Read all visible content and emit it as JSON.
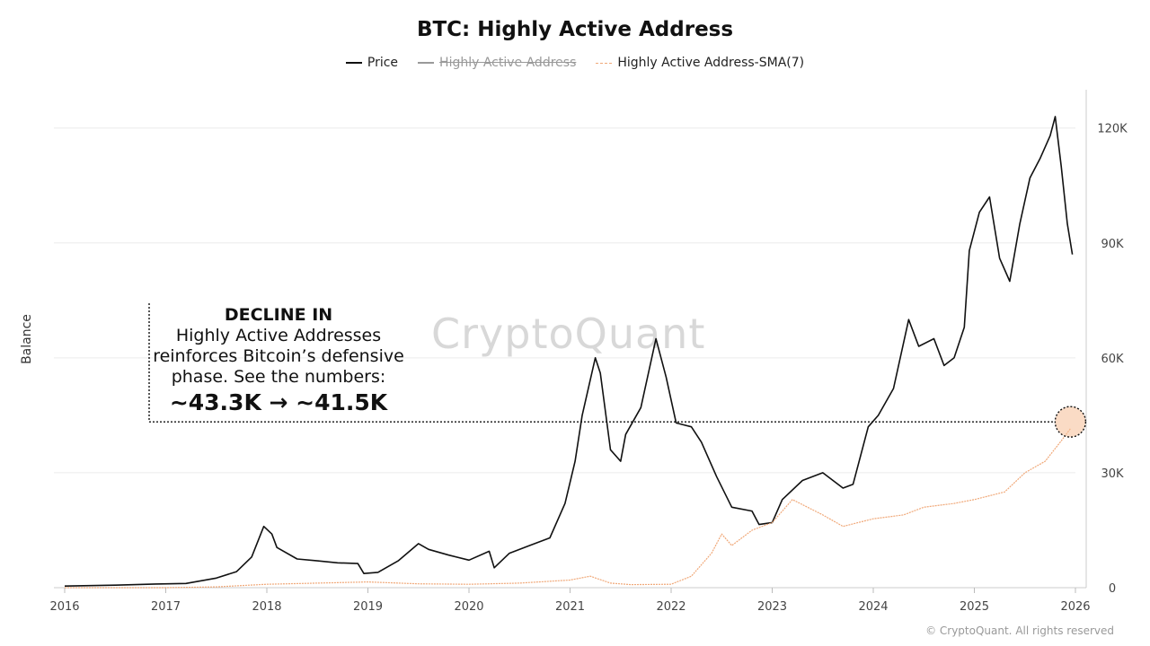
{
  "title": "BTC: Highly Active Address",
  "legend": [
    {
      "label": "Price",
      "color": "#111111",
      "disabled": false
    },
    {
      "label": "Highly Active Address",
      "color": "#999999",
      "disabled": true
    },
    {
      "label": "Highly Active Address-SMA(7)",
      "color": "#f0a878",
      "disabled": false
    }
  ],
  "y_axis_label": "Balance",
  "watermark": "CryptoQuant",
  "credit": "© CryptoQuant. All rights reserved",
  "annotation": {
    "heading": "DECLINE IN",
    "body": "Highly Active Addresses reinforces Bitcoin’s defensive phase. See the numbers:",
    "figures": "~43.3K → ~41.5K"
  },
  "chart_data": {
    "type": "line",
    "title": "BTC: Highly Active Address",
    "ylabel": "Balance",
    "x_ticks": [
      "2016",
      "2017",
      "2018",
      "2019",
      "2020",
      "2021",
      "2022",
      "2023",
      "2024",
      "2025",
      "2026"
    ],
    "y_ticks": [
      "0",
      "30K",
      "60K",
      "90K",
      "120K"
    ],
    "xlim": [
      2016,
      2026
    ],
    "ylim": [
      0,
      130000
    ],
    "grid": true,
    "legend_position": "top",
    "series": [
      {
        "name": "Price",
        "color": "#111111",
        "x": [
          2016.0,
          2016.5,
          2016.9,
          2017.2,
          2017.5,
          2017.7,
          2017.85,
          2017.97,
          2018.05,
          2018.1,
          2018.3,
          2018.5,
          2018.7,
          2018.9,
          2018.96,
          2019.1,
          2019.3,
          2019.5,
          2019.6,
          2019.8,
          2020.0,
          2020.2,
          2020.25,
          2020.4,
          2020.6,
          2020.8,
          2020.95,
          2021.05,
          2021.12,
          2021.25,
          2021.3,
          2021.4,
          2021.5,
          2021.55,
          2021.7,
          2021.85,
          2021.95,
          2022.05,
          2022.2,
          2022.3,
          2022.45,
          2022.6,
          2022.8,
          2022.87,
          2023.0,
          2023.1,
          2023.3,
          2023.5,
          2023.7,
          2023.8,
          2023.95,
          2024.05,
          2024.2,
          2024.35,
          2024.45,
          2024.6,
          2024.7,
          2024.8,
          2024.9,
          2024.95,
          2025.05,
          2025.15,
          2025.25,
          2025.35,
          2025.45,
          2025.55,
          2025.65,
          2025.75,
          2025.8,
          2025.86,
          2025.92,
          2025.97
        ],
        "y": [
          430,
          650,
          950,
          1100,
          2500,
          4200,
          8000,
          16000,
          14000,
          10500,
          7500,
          7000,
          6500,
          6300,
          3700,
          4000,
          7000,
          11500,
          10000,
          8500,
          7200,
          9500,
          5200,
          9000,
          11000,
          13000,
          22000,
          33000,
          45000,
          60000,
          56000,
          36000,
          33000,
          40000,
          47000,
          65000,
          55000,
          43000,
          42000,
          38000,
          29000,
          21000,
          20000,
          16500,
          17000,
          23000,
          28000,
          30000,
          26000,
          27000,
          42000,
          45000,
          52000,
          70000,
          63000,
          65000,
          58000,
          60000,
          68000,
          88000,
          98000,
          102000,
          86000,
          80000,
          95000,
          107000,
          112000,
          118000,
          123000,
          110000,
          95000,
          87000
        ]
      },
      {
        "name": "Highly Active Address-SMA(7)",
        "color": "#f0a878",
        "x": [
          2016.0,
          2017.0,
          2017.5,
          2018.0,
          2018.5,
          2019.0,
          2019.5,
          2020.0,
          2020.5,
          2021.0,
          2021.2,
          2021.4,
          2021.6,
          2022.0,
          2022.2,
          2022.4,
          2022.5,
          2022.6,
          2022.8,
          2023.0,
          2023.2,
          2023.5,
          2023.7,
          2024.0,
          2024.3,
          2024.5,
          2024.8,
          2025.0,
          2025.3,
          2025.5,
          2025.7,
          2025.85,
          2025.95
        ],
        "y": [
          0,
          0,
          200,
          900,
          1200,
          1500,
          1000,
          900,
          1200,
          2000,
          3000,
          1200,
          800,
          900,
          3000,
          9000,
          14000,
          11000,
          15000,
          17000,
          23000,
          19000,
          16000,
          18000,
          19000,
          21000,
          22000,
          23000,
          25000,
          30000,
          33000,
          38000,
          41500
        ]
      }
    ],
    "annotations": [
      {
        "text": "~43.3K → ~41.5K",
        "y": 43300
      }
    ]
  }
}
